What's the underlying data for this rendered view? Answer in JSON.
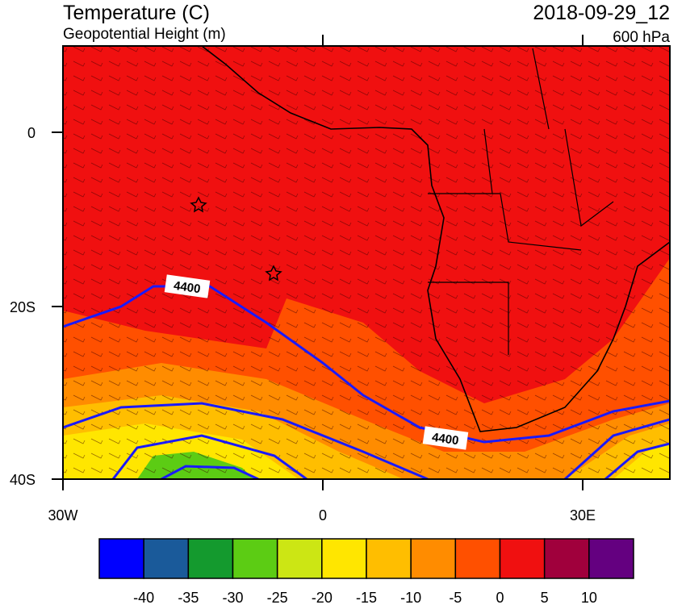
{
  "header": {
    "title": "Temperature (C)",
    "subtitle": "Geopotential Height (m)",
    "time": "2018-09-29_12",
    "level": "600 hPa"
  },
  "axes": {
    "lat_labels": [
      "0",
      "20S",
      "40S"
    ],
    "lon_labels": [
      "30W",
      "0",
      "30E"
    ]
  },
  "contour_labels": [
    "4400",
    "4400"
  ],
  "colorbar": {
    "colors": [
      "#0000ff",
      "#1a5a9a",
      "#149a2e",
      "#5ccc14",
      "#cce614",
      "#ffe600",
      "#ffbe00",
      "#ff8c00",
      "#ff5000",
      "#f01010",
      "#a0003c",
      "#640080"
    ],
    "labels": [
      "-40",
      "-35",
      "-30",
      "-25",
      "-20",
      "-15",
      "-10",
      "-5",
      "0",
      "5",
      "10"
    ]
  }
}
